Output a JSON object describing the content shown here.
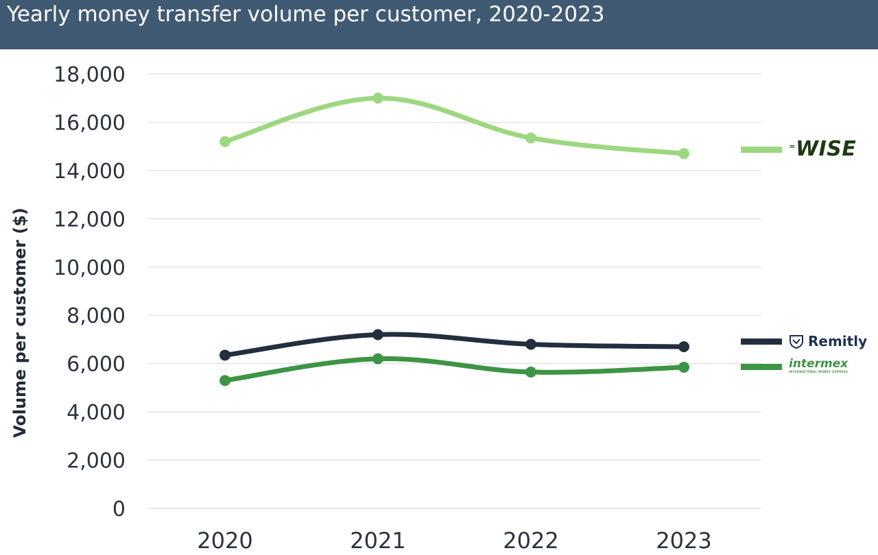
{
  "header": {
    "title": "Yearly money transfer volume per customer, 2020-2023"
  },
  "chart_data": {
    "type": "line",
    "title": "Yearly money transfer volume per customer, 2020-2023",
    "xlabel": "",
    "ylabel": "Volume per customer ($)",
    "categories": [
      "2020",
      "2021",
      "2022",
      "2023"
    ],
    "ylim": [
      0,
      18000
    ],
    "yticks": [
      0,
      2000,
      4000,
      6000,
      8000,
      10000,
      12000,
      14000,
      16000,
      18000
    ],
    "ytick_labels": [
      "0",
      "2,000",
      "4,000",
      "6,000",
      "8,000",
      "10,000",
      "12,000",
      "14,000",
      "16,000",
      "18,000"
    ],
    "grid": true,
    "legend_placement": "right",
    "series": [
      {
        "name": "WISE",
        "values": [
          15200,
          17000,
          15350,
          14700
        ],
        "color": "#9dd77f",
        "logo_icon": "wise-logo-icon"
      },
      {
        "name": "Remitly",
        "values": [
          6350,
          7200,
          6800,
          6700
        ],
        "color": "#232f3f",
        "logo_icon": "remitly-shield-icon"
      },
      {
        "name": "intermex",
        "subtitle": "INTERNATIONAL MONEY EXPRESS",
        "values": [
          5300,
          6200,
          5650,
          5850
        ],
        "color": "#3c9445",
        "logo_icon": "intermex-logo-icon"
      }
    ]
  }
}
